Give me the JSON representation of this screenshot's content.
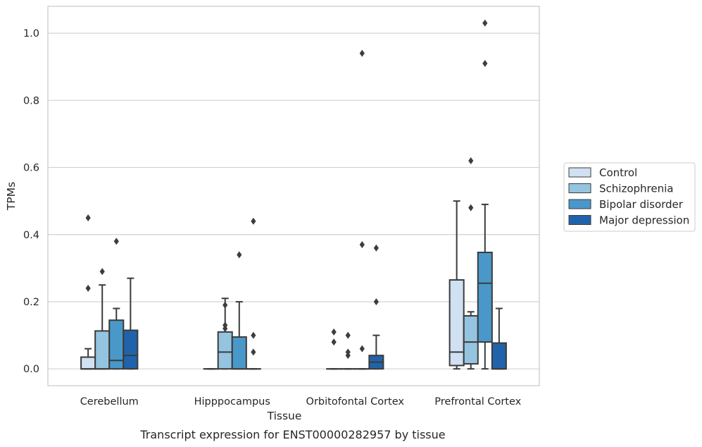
{
  "chart_data": {
    "type": "box",
    "xlabel": "Tissue",
    "ylabel": "TPMs",
    "caption": "Transcript expression for ENST00000282957 by tissue",
    "ylim": [
      -0.05,
      1.08
    ],
    "yticks": [
      "0.0",
      "0.2",
      "0.4",
      "0.6",
      "0.8",
      "1.0"
    ],
    "categories": [
      "Cerebellum",
      "Hipppocampus",
      "Orbitofontal Cortex",
      "Prefrontal Cortex"
    ],
    "grid": "horizontal",
    "legend_position": "right",
    "series": [
      {
        "name": "Control",
        "color": "#d0e1f2",
        "boxes": [
          {
            "whislo": 0.0,
            "q1": 0.0,
            "med": 0.0,
            "q3": 0.035,
            "whishi": 0.06,
            "fliers": [
              0.24,
              0.45
            ]
          },
          {
            "whislo": 0.0,
            "q1": 0.0,
            "med": 0.0,
            "q3": 0.0,
            "whishi": 0.0,
            "fliers": []
          },
          {
            "whislo": 0.0,
            "q1": 0.0,
            "med": 0.0,
            "q3": 0.0,
            "whishi": 0.0,
            "fliers": [
              0.08,
              0.11
            ]
          },
          {
            "whislo": 0.0,
            "q1": 0.01,
            "med": 0.05,
            "q3": 0.265,
            "whishi": 0.5,
            "fliers": []
          }
        ]
      },
      {
        "name": "Schizophrenia",
        "color": "#94c4df",
        "boxes": [
          {
            "whislo": 0.0,
            "q1": 0.0,
            "med": 0.0,
            "q3": 0.113,
            "whishi": 0.25,
            "fliers": [
              0.29
            ]
          },
          {
            "whislo": 0.0,
            "q1": 0.0,
            "med": 0.05,
            "q3": 0.11,
            "whishi": 0.21,
            "fliers": [
              0.12,
              0.13,
              0.19
            ]
          },
          {
            "whislo": 0.0,
            "q1": 0.0,
            "med": 0.0,
            "q3": 0.0,
            "whishi": 0.0,
            "fliers": [
              0.04,
              0.05,
              0.1
            ]
          },
          {
            "whislo": 0.0,
            "q1": 0.015,
            "med": 0.08,
            "q3": 0.158,
            "whishi": 0.17,
            "fliers": [
              0.48,
              0.62
            ]
          }
        ]
      },
      {
        "name": "Bipolar disorder",
        "color": "#4a98c9",
        "boxes": [
          {
            "whislo": 0.0,
            "q1": 0.0,
            "med": 0.025,
            "q3": 0.145,
            "whishi": 0.18,
            "fliers": [
              0.38
            ]
          },
          {
            "whislo": 0.0,
            "q1": 0.0,
            "med": 0.0,
            "q3": 0.095,
            "whishi": 0.2,
            "fliers": [
              0.34
            ]
          },
          {
            "whislo": 0.0,
            "q1": 0.0,
            "med": 0.0,
            "q3": 0.0,
            "whishi": 0.0,
            "fliers": [
              0.06,
              0.37,
              0.94
            ]
          },
          {
            "whislo": 0.0,
            "q1": 0.08,
            "med": 0.255,
            "q3": 0.347,
            "whishi": 0.49,
            "fliers": [
              0.91,
              1.03
            ]
          }
        ]
      },
      {
        "name": "Major depression",
        "color": "#2163aa",
        "boxes": [
          {
            "whislo": 0.0,
            "q1": 0.0,
            "med": 0.04,
            "q3": 0.115,
            "whishi": 0.27,
            "fliers": []
          },
          {
            "whislo": 0.0,
            "q1": 0.0,
            "med": 0.0,
            "q3": 0.0,
            "whishi": 0.0,
            "fliers": [
              0.05,
              0.1,
              0.44
            ]
          },
          {
            "whislo": 0.0,
            "q1": 0.0,
            "med": 0.02,
            "q3": 0.04,
            "whishi": 0.1,
            "fliers": [
              0.2,
              0.36
            ]
          },
          {
            "whislo": 0.0,
            "q1": 0.0,
            "med": 0.0,
            "q3": 0.077,
            "whishi": 0.18,
            "fliers": []
          }
        ]
      }
    ]
  }
}
